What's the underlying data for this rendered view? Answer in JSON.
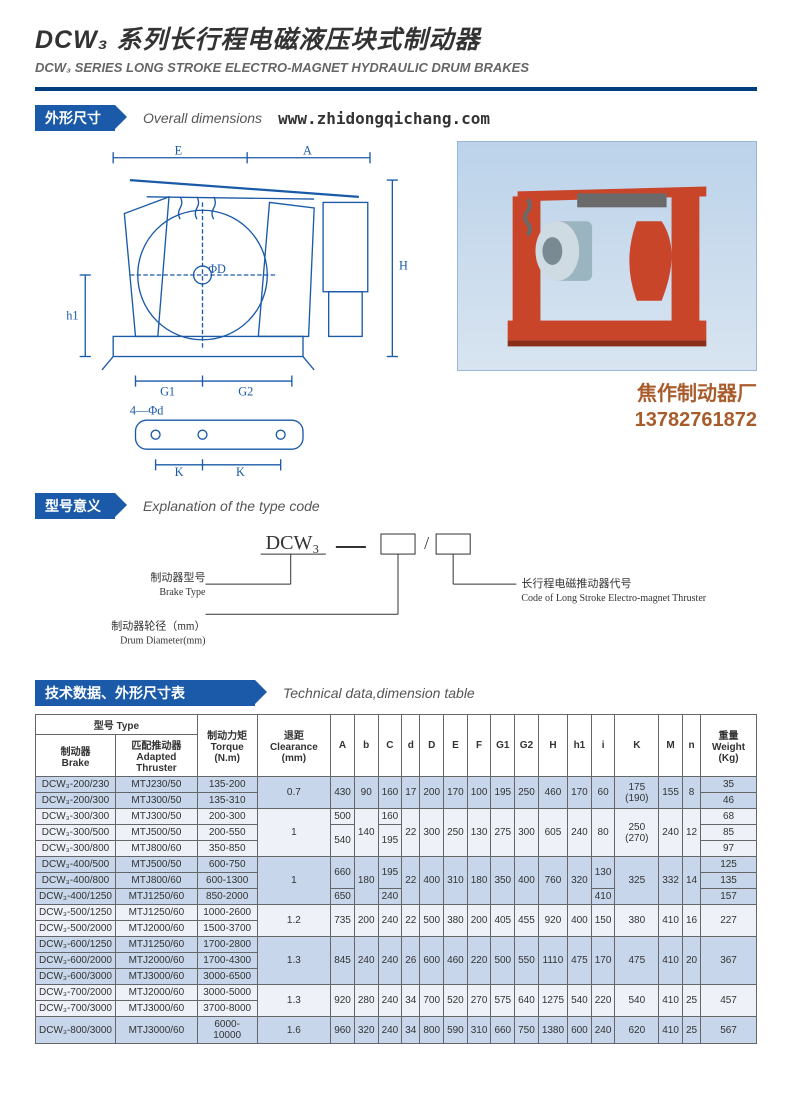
{
  "title": {
    "cn": "DCW₃ 系列长行程电磁液压块式制动器",
    "en": "DCW₃ SERIES LONG STROKE ELECTRO-MAGNET HYDRAULIC DRUM BRAKES"
  },
  "section1": {
    "tab": "外形尺寸",
    "sub": "Overall dimensions",
    "url": "www.zhidongqichang.com",
    "photo_caption_line1": "焦作制动器厂",
    "photo_caption_line2": "13782761872",
    "labels": {
      "E": "E",
      "A": "A",
      "H": "H",
      "h1": "h1",
      "G1": "G1",
      "G2": "G2",
      "phiD": "ΦD",
      "fourphid": "4—Φd",
      "K1": "K",
      "K2": "K"
    }
  },
  "section2": {
    "tab": "型号意义",
    "sub": "Explanation of the type code",
    "code": "DCW₃",
    "block1_cn": "制动器型号",
    "block1_en": "Brake Type",
    "block2_cn": "制动器轮径（mm）",
    "block2_en": "Drum Diameter(mm)",
    "block3_cn": "长行程电磁推动器代号",
    "block3_en": "Code of Long Stroke Electro-magnet Thruster"
  },
  "section3": {
    "tab": "技术数据、外形尺寸表",
    "sub": "Technical data,dimension table"
  },
  "table": {
    "header": {
      "type_cn": "型号",
      "type_en": "Type",
      "brake_cn": "制动器",
      "brake_en": "Brake",
      "thruster_cn": "匹配推动器",
      "thruster_en": "Adapted Thruster",
      "torque_cn": "制动力矩",
      "torque_en": "Torque (N.m)",
      "clearance_cn": "退距",
      "clearance_en": "Clearance (mm)",
      "A": "A",
      "b": "b",
      "C": "C",
      "d": "d",
      "D": "D",
      "E": "E",
      "F": "F",
      "G1": "G1",
      "G2": "G2",
      "H": "H",
      "h1": "h1",
      "i": "i",
      "K": "K",
      "M": "M",
      "n": "n",
      "weight_cn": "重量",
      "weight_en": "Weight (Kg)"
    },
    "groups": [
      {
        "cls": "row-even",
        "clearance": "0.7",
        "rows": [
          {
            "brake": "DCW₃-200/230",
            "thruster": "MTJ230/50",
            "torque": "135-200",
            "A": "430",
            "b": "90",
            "C": "160",
            "d": "17",
            "D": "200",
            "E": "170",
            "F": "100",
            "G1": "195",
            "G2": "250",
            "H": "460",
            "h1": "170",
            "i": "60",
            "K": "175 (190)",
            "M": "155",
            "n": "8",
            "wt": "35"
          },
          {
            "brake": "DCW₃-200/300",
            "thruster": "MTJ300/50",
            "torque": "135-310",
            "wt": "46"
          }
        ],
        "merge": {
          "A": 2,
          "b": 2,
          "C": 2,
          "d": 2,
          "D": 2,
          "E": 2,
          "F": 2,
          "G1": 2,
          "G2": 2,
          "H": 2,
          "h1": 2,
          "i": 2,
          "K": 2,
          "M": 2,
          "n": 2
        }
      },
      {
        "cls": "row-odd",
        "clearance": "1",
        "rows": [
          {
            "brake": "DCW₃-300/300",
            "thruster": "MTJ300/50",
            "torque": "200-300",
            "A": "500",
            "b": "140",
            "C": "160",
            "d": "22",
            "D": "300",
            "E": "250",
            "F": "130",
            "G1": "275",
            "G2": "300",
            "H": "605",
            "h1": "240",
            "i": "80",
            "K": "250 (270)",
            "M": "240",
            "n": "12",
            "wt": "68"
          },
          {
            "brake": "DCW₃-300/500",
            "thruster": "MTJ500/50",
            "torque": "200-550",
            "A": "540",
            "C": "195",
            "wt": "85"
          },
          {
            "brake": "DCW₃-300/800",
            "thruster": "MTJ800/60",
            "torque": "350-850",
            "wt": "97"
          }
        ],
        "merge": {
          "b": 3,
          "d": 3,
          "D": 3,
          "E": 3,
          "F": 3,
          "G1": 3,
          "G2": 3,
          "H": 3,
          "h1": 3,
          "i": 3,
          "K": 3,
          "M": 3,
          "n": 3,
          "A2": 2,
          "C2": 2
        }
      },
      {
        "cls": "row-even",
        "clearance": "1",
        "rows": [
          {
            "brake": "DCW₃-400/500",
            "thruster": "MTJ500/50",
            "torque": "600-750",
            "A": "660",
            "b": "180",
            "C": "195",
            "d": "22",
            "D": "400",
            "E": "310",
            "F": "180",
            "G1": "350",
            "G2": "400",
            "H": "760",
            "h1": "320",
            "i": "130",
            "K": "325",
            "M": "332",
            "n": "14",
            "wt": "125"
          },
          {
            "brake": "DCW₃-400/800",
            "thruster": "MTJ800/60",
            "torque": "600-1300",
            "wt": "135"
          },
          {
            "brake": "DCW₃-400/1250",
            "thruster": "MTJ1250/60",
            "torque": "850-2000",
            "A": "650",
            "C": "240",
            "i": "410",
            "wt": "157"
          }
        ],
        "merge": {
          "b": 3,
          "d": 3,
          "D": 3,
          "E": 3,
          "F": 3,
          "G1": 3,
          "G2": 3,
          "H": 3,
          "h1": 3,
          "K": 3,
          "M": 3,
          "n": 3,
          "A1": 2,
          "C1": 2,
          "i1": 2
        }
      },
      {
        "cls": "row-odd",
        "clearance": "1.2",
        "rows": [
          {
            "brake": "DCW₃-500/1250",
            "thruster": "MTJ1250/60",
            "torque": "1000-2600",
            "A": "735",
            "b": "200",
            "C": "240",
            "d": "22",
            "D": "500",
            "E": "380",
            "F": "200",
            "G1": "405",
            "G2": "455",
            "H": "920",
            "h1": "400",
            "i": "150",
            "K": "380",
            "M": "410",
            "n": "16",
            "wt": "227"
          },
          {
            "brake": "DCW₃-500/2000",
            "thruster": "MTJ2000/60",
            "torque": "1500-3700"
          }
        ],
        "merge": {
          "all": 2
        }
      },
      {
        "cls": "row-even",
        "clearance": "1.3",
        "rows": [
          {
            "brake": "DCW₃-600/1250",
            "thruster": "MTJ1250/60",
            "torque": "1700-2800",
            "A": "845",
            "b": "240",
            "C": "240",
            "d": "26",
            "D": "600",
            "E": "460",
            "F": "220",
            "G1": "500",
            "G2": "550",
            "H": "1110",
            "h1": "475",
            "i": "170",
            "K": "475",
            "M": "410",
            "n": "20",
            "wt": "367"
          },
          {
            "brake": "DCW₃-600/2000",
            "thruster": "MTJ2000/60",
            "torque": "1700-4300"
          },
          {
            "brake": "DCW₃-600/3000",
            "thruster": "MTJ3000/60",
            "torque": "3000-6500"
          }
        ],
        "merge": {
          "all": 3
        }
      },
      {
        "cls": "row-odd",
        "clearance": "1.3",
        "rows": [
          {
            "brake": "DCW₃-700/2000",
            "thruster": "MTJ2000/60",
            "torque": "3000-5000",
            "A": "920",
            "b": "280",
            "C": "240",
            "d": "34",
            "D": "700",
            "E": "520",
            "F": "270",
            "G1": "575",
            "G2": "640",
            "H": "1275",
            "h1": "540",
            "i": "220",
            "K": "540",
            "M": "410",
            "n": "25",
            "wt": "457"
          },
          {
            "brake": "DCW₃-700/3000",
            "thruster": "MTJ3000/60",
            "torque": "3700-8000"
          }
        ],
        "merge": {
          "all": 2
        }
      },
      {
        "cls": "row-even",
        "clearance": "1.6",
        "rows": [
          {
            "brake": "DCW₃-800/3000",
            "thruster": "MTJ3000/60",
            "torque": "6000-10000",
            "A": "960",
            "b": "320",
            "C": "240",
            "d": "34",
            "D": "800",
            "E": "590",
            "F": "310",
            "G1": "660",
            "G2": "750",
            "H": "1380",
            "h1": "600",
            "i": "240",
            "K": "620",
            "M": "410",
            "n": "25",
            "wt": "567"
          }
        ],
        "merge": {}
      }
    ]
  }
}
